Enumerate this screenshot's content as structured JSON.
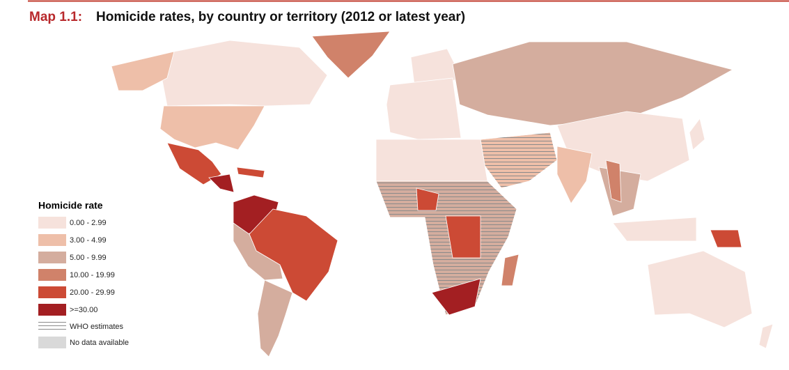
{
  "title_number": "Map 1.1:",
  "title": "Homicide rates, by country or territory (2012 or latest year)",
  "legend": {
    "title": "Homicide rate",
    "items": [
      {
        "label": "0.00 - 2.99",
        "color": "#f6e2dc"
      },
      {
        "label": "3.00 - 4.99",
        "color": "#eebfa9"
      },
      {
        "label": "5.00 - 9.99",
        "color": "#d4ad9e"
      },
      {
        "label": "10.00 - 19.99",
        "color": "#d0826a"
      },
      {
        "label": "20.00 - 29.99",
        "color": "#cc4a35"
      },
      {
        "label": ">=30.00",
        "color": "#a31f22"
      }
    ],
    "who_estimates": "WHO estimates",
    "no_data": {
      "label": "No data available",
      "color": "#d9d9d9"
    }
  }
}
